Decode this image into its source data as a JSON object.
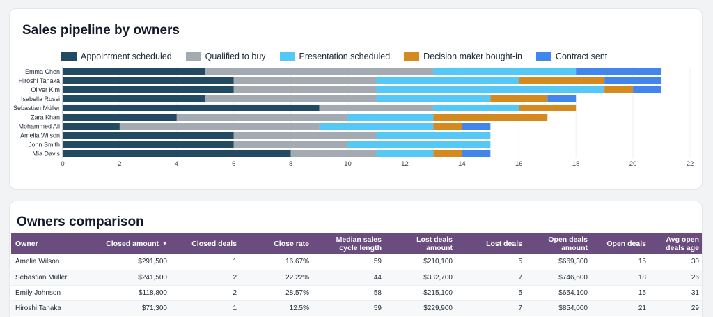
{
  "chart_card": {
    "title": "Sales pipeline by owners"
  },
  "chart_data": {
    "type": "bar",
    "orientation": "horizontal",
    "stacked": true,
    "title": "Sales pipeline by owners",
    "xlabel": "",
    "ylabel": "",
    "xlim": [
      0,
      22
    ],
    "xticks": [
      0,
      2,
      4,
      6,
      8,
      10,
      12,
      14,
      16,
      18,
      20,
      22
    ],
    "grid": true,
    "legend_position": "top-left",
    "categories": [
      "Emma Chen",
      "Hiroshi Tanaka",
      "Oliver Kim",
      "Isabella Rossi",
      "Sebastian Müller",
      "Zara Khan",
      "Mohammed Ali",
      "Amelia Wilson",
      "John Smith",
      "Mia Davis"
    ],
    "series": [
      {
        "name": "Appointment scheduled",
        "color": "#234a63",
        "values": [
          5,
          6,
          6,
          5,
          9,
          4,
          2,
          6,
          6,
          8
        ]
      },
      {
        "name": "Qualified to buy",
        "color": "#a3aab2",
        "values": [
          8,
          5,
          5,
          6,
          4,
          6,
          7,
          5,
          4,
          3
        ]
      },
      {
        "name": "Presentation scheduled",
        "color": "#55c8f5",
        "values": [
          5,
          5,
          8,
          4,
          3,
          3,
          4,
          4,
          5,
          2
        ]
      },
      {
        "name": "Decision maker bought-in",
        "color": "#d48a1e",
        "values": [
          0,
          3,
          1,
          2,
          2,
          4,
          1,
          0,
          0,
          1
        ]
      },
      {
        "name": "Contract sent",
        "color": "#4285ec",
        "values": [
          3,
          2,
          1,
          1,
          0,
          0,
          1,
          0,
          0,
          1
        ]
      }
    ]
  },
  "table_card": {
    "title": "Owners comparison",
    "sort_indicator": "▼",
    "columns": [
      {
        "label": "Owner",
        "align": "l"
      },
      {
        "label": "Closed amount",
        "align": "r",
        "sorted": true
      },
      {
        "label": "Closed deals",
        "align": "r"
      },
      {
        "label": "Close rate",
        "align": "r"
      },
      {
        "label": "Median sales cycle length",
        "align": "r"
      },
      {
        "label": "Lost deals amount",
        "align": "r"
      },
      {
        "label": "Lost deals",
        "align": "r"
      },
      {
        "label": "Open deals amount",
        "align": "r"
      },
      {
        "label": "Open deals",
        "align": "r"
      },
      {
        "label": "Avg open deals age",
        "align": "r"
      }
    ],
    "rows": [
      [
        "Amelia Wilson",
        "$291,500",
        "1",
        "16.67%",
        "59",
        "$210,100",
        "5",
        "$669,300",
        "15",
        "30"
      ],
      [
        "Sebastian Müller",
        "$241,500",
        "2",
        "22.22%",
        "44",
        "$332,700",
        "7",
        "$746,600",
        "18",
        "26"
      ],
      [
        "Emily Johnson",
        "$118,800",
        "2",
        "28.57%",
        "58",
        "$215,100",
        "5",
        "$654,100",
        "15",
        "31"
      ],
      [
        "Hiroshi Tanaka",
        "$71,300",
        "1",
        "12.5%",
        "59",
        "$229,900",
        "7",
        "$854,000",
        "21",
        "29"
      ]
    ]
  }
}
